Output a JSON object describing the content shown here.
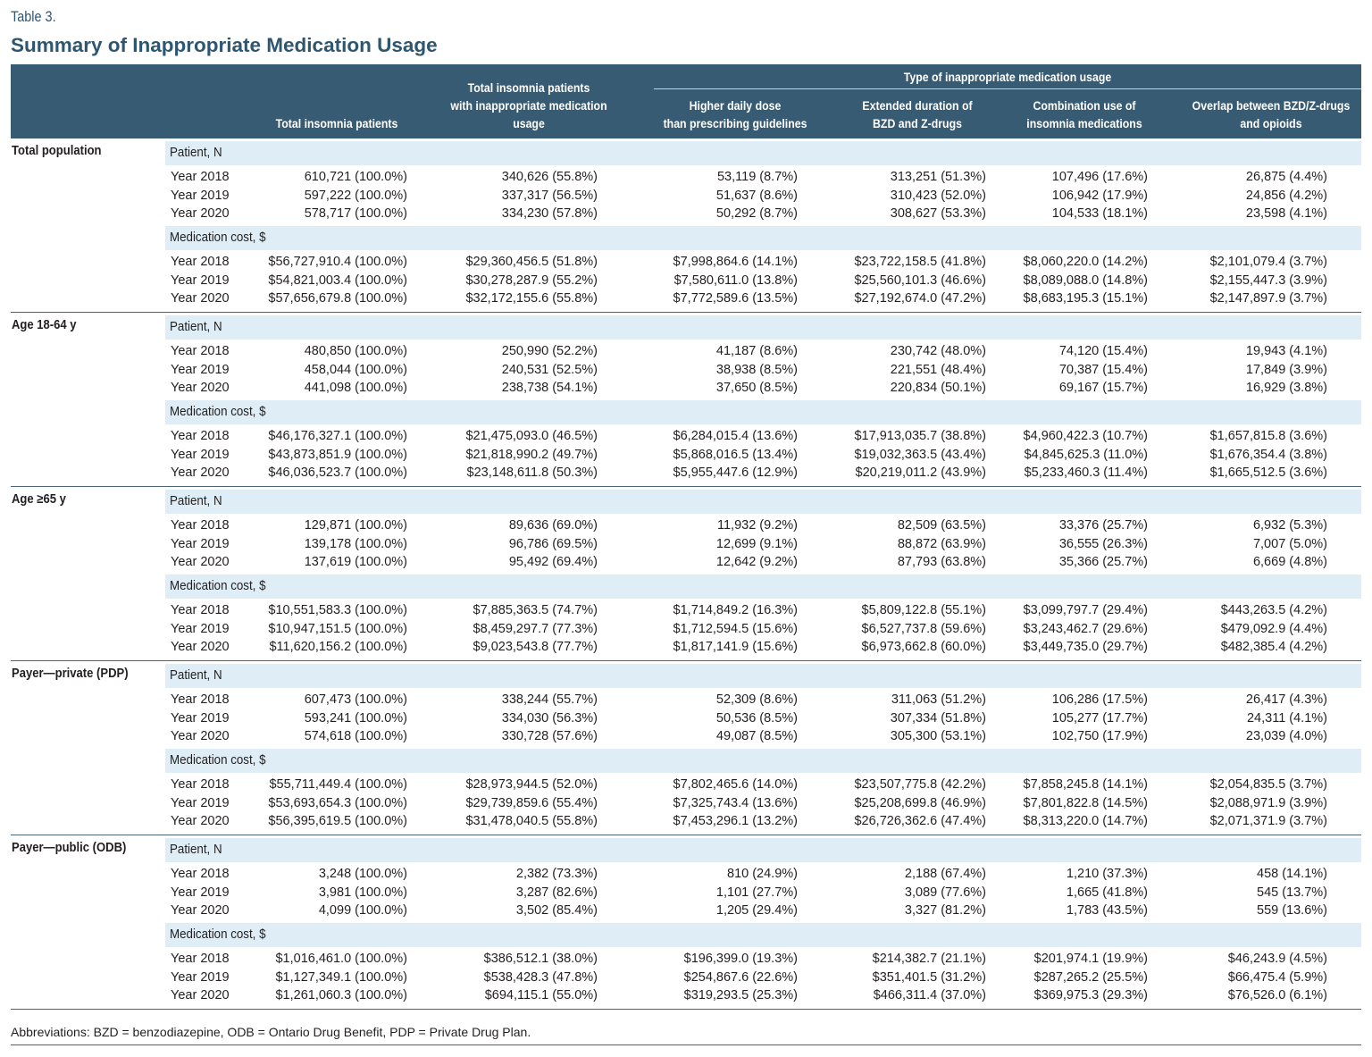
{
  "table_label": "Table 3.",
  "title": "Summary of Inappropriate Medication Usage",
  "header": {
    "col_total": "Total insomnia patients",
    "col_inappropriate": [
      "Total insomnia patients",
      "with inappropriate medication",
      "usage"
    ],
    "group": "Type of inappropriate medication usage",
    "types": [
      [
        "Higher daily dose",
        "than prescribing guidelines"
      ],
      [
        "Extended duration of",
        "BZD and Z-drugs"
      ],
      [
        "Combination use of",
        "insomnia medications"
      ],
      [
        "Overlap between BZD/Z-drugs",
        "and opioids"
      ]
    ]
  },
  "colors": {
    "header_bg": "#375b72",
    "title": "#2e5670",
    "band": "#deedf6"
  },
  "sections": [
    {
      "label": "Total population",
      "patient_label": "Patient, N",
      "cost_label": "Medication cost, $",
      "patients": [
        {
          "year": "Year 2018",
          "values": [
            "610,721 (100.0%)",
            "340,626 (55.8%)",
            "53,119 (8.7%)",
            "313,251 (51.3%)",
            "107,496 (17.6%)",
            "26,875 (4.4%)"
          ]
        },
        {
          "year": "Year 2019",
          "values": [
            "597,222 (100.0%)",
            "337,317 (56.5%)",
            "51,637 (8.6%)",
            "310,423 (52.0%)",
            "106,942 (17.9%)",
            "24,856 (4.2%)"
          ]
        },
        {
          "year": "Year 2020",
          "values": [
            "578,717 (100.0%)",
            "334,230 (57.8%)",
            "50,292 (8.7%)",
            "308,627 (53.3%)",
            "104,533 (18.1%)",
            "23,598 (4.1%)"
          ]
        }
      ],
      "costs": [
        {
          "year": "Year 2018",
          "values": [
            "$56,727,910.4 (100.0%)",
            "$29,360,456.5 (51.8%)",
            "$7,998,864.6 (14.1%)",
            "$23,722,158.5 (41.8%)",
            "$8,060,220.0 (14.2%)",
            "$2,101,079.4 (3.7%)"
          ]
        },
        {
          "year": "Year 2019",
          "values": [
            "$54,821,003.4 (100.0%)",
            "$30,278,287.9 (55.2%)",
            "$7,580,611.0 (13.8%)",
            "$25,560,101.3 (46.6%)",
            "$8,089,088.0 (14.8%)",
            "$2,155,447.3 (3.9%)"
          ]
        },
        {
          "year": "Year 2020",
          "values": [
            "$57,656,679.8 (100.0%)",
            "$32,172,155.6 (55.8%)",
            "$7,772,589.6 (13.5%)",
            "$27,192,674.0 (47.2%)",
            "$8,683,195.3 (15.1%)",
            "$2,147,897.9 (3.7%)"
          ]
        }
      ]
    },
    {
      "label": "Age 18-64 y",
      "patient_label": "Patient, N",
      "cost_label": "Medication cost, $",
      "patients": [
        {
          "year": "Year 2018",
          "values": [
            "480,850 (100.0%)",
            "250,990 (52.2%)",
            "41,187 (8.6%)",
            "230,742 (48.0%)",
            "74,120 (15.4%)",
            "19,943 (4.1%)"
          ]
        },
        {
          "year": "Year 2019",
          "values": [
            "458,044 (100.0%)",
            "240,531 (52.5%)",
            "38,938 (8.5%)",
            "221,551 (48.4%)",
            "70,387 (15.4%)",
            "17,849 (3.9%)"
          ]
        },
        {
          "year": "Year 2020",
          "values": [
            "441,098 (100.0%)",
            "238,738 (54.1%)",
            "37,650 (8.5%)",
            "220,834 (50.1%)",
            "69,167 (15.7%)",
            "16,929 (3.8%)"
          ]
        }
      ],
      "costs": [
        {
          "year": "Year 2018",
          "values": [
            "$46,176,327.1 (100.0%)",
            "$21,475,093.0 (46.5%)",
            "$6,284,015.4 (13.6%)",
            "$17,913,035.7 (38.8%)",
            "$4,960,422.3 (10.7%)",
            "$1,657,815.8 (3.6%)"
          ]
        },
        {
          "year": "Year 2019",
          "values": [
            "$43,873,851.9 (100.0%)",
            "$21,818,990.2 (49.7%)",
            "$5,868,016.5 (13.4%)",
            "$19,032,363.5 (43.4%)",
            "$4,845,625.3 (11.0%)",
            "$1,676,354.4 (3.8%)"
          ]
        },
        {
          "year": "Year 2020",
          "values": [
            "$46,036,523.7 (100.0%)",
            "$23,148,611.8 (50.3%)",
            "$5,955,447.6 (12.9%)",
            "$20,219,011.2 (43.9%)",
            "$5,233,460.3 (11.4%)",
            "$1,665,512.5 (3.6%)"
          ]
        }
      ]
    },
    {
      "label": "Age ≥65 y",
      "patient_label": "Patient, N",
      "cost_label": "Medication cost, $",
      "patients": [
        {
          "year": "Year 2018",
          "values": [
            "129,871 (100.0%)",
            "89,636 (69.0%)",
            "11,932 (9.2%)",
            "82,509 (63.5%)",
            "33,376 (25.7%)",
            "6,932 (5.3%)"
          ]
        },
        {
          "year": "Year 2019",
          "values": [
            "139,178 (100.0%)",
            "96,786 (69.5%)",
            "12,699 (9.1%)",
            "88,872 (63.9%)",
            "36,555 (26.3%)",
            "7,007 (5.0%)"
          ]
        },
        {
          "year": "Year 2020",
          "values": [
            "137,619 (100.0%)",
            "95,492 (69.4%)",
            "12,642 (9.2%)",
            "87,793 (63.8%)",
            "35,366 (25.7%)",
            "6,669 (4.8%)"
          ]
        }
      ],
      "costs": [
        {
          "year": "Year 2018",
          "values": [
            "$10,551,583.3 (100.0%)",
            "$7,885,363.5 (74.7%)",
            "$1,714,849.2 (16.3%)",
            "$5,809,122.8 (55.1%)",
            "$3,099,797.7 (29.4%)",
            "$443,263.5 (4.2%)"
          ]
        },
        {
          "year": "Year 2019",
          "values": [
            "$10,947,151.5 (100.0%)",
            "$8,459,297.7 (77.3%)",
            "$1,712,594.5 (15.6%)",
            "$6,527,737.8 (59.6%)",
            "$3,243,462.7 (29.6%)",
            "$479,092.9 (4.4%)"
          ]
        },
        {
          "year": "Year 2020",
          "values": [
            "$11,620,156.2 (100.0%)",
            "$9,023,543.8 (77.7%)",
            "$1,817,141.9 (15.6%)",
            "$6,973,662.8 (60.0%)",
            "$3,449,735.0 (29.7%)",
            "$482,385.4 (4.2%)"
          ]
        }
      ]
    },
    {
      "label": "Payer—private (PDP)",
      "patient_label": "Patient, N",
      "cost_label": "Medication cost, $",
      "patients": [
        {
          "year": "Year 2018",
          "values": [
            "607,473 (100.0%)",
            "338,244 (55.7%)",
            "52,309 (8.6%)",
            "311,063 (51.2%)",
            "106,286 (17.5%)",
            "26,417 (4.3%)"
          ]
        },
        {
          "year": "Year 2019",
          "values": [
            "593,241 (100.0%)",
            "334,030 (56.3%)",
            "50,536 (8.5%)",
            "307,334 (51.8%)",
            "105,277 (17.7%)",
            "24,311 (4.1%)"
          ]
        },
        {
          "year": "Year 2020",
          "values": [
            "574,618 (100.0%)",
            "330,728 (57.6%)",
            "49,087 (8.5%)",
            "305,300 (53.1%)",
            "102,750 (17.9%)",
            "23,039 (4.0%)"
          ]
        }
      ],
      "costs": [
        {
          "year": "Year 2018",
          "values": [
            "$55,711,449.4 (100.0%)",
            "$28,973,944.5 (52.0%)",
            "$7,802,465.6 (14.0%)",
            "$23,507,775.8 (42.2%)",
            "$7,858,245.8 (14.1%)",
            "$2,054,835.5 (3.7%)"
          ]
        },
        {
          "year": "Year 2019",
          "values": [
            "$53,693,654.3 (100.0%)",
            "$29,739,859.6 (55.4%)",
            "$7,325,743.4 (13.6%)",
            "$25,208,699.8 (46.9%)",
            "$7,801,822.8 (14.5%)",
            "$2,088,971.9 (3.9%)"
          ]
        },
        {
          "year": "Year 2020",
          "values": [
            "$56,395,619.5 (100.0%)",
            "$31,478,040.5 (55.8%)",
            "$7,453,296.1 (13.2%)",
            "$26,726,362.6 (47.4%)",
            "$8,313,220.0 (14.7%)",
            "$2,071,371.9 (3.7%)"
          ]
        }
      ]
    },
    {
      "label": "Payer—public (ODB)",
      "patient_label": "Patient, N",
      "cost_label": "Medication cost, $",
      "patients": [
        {
          "year": "Year 2018",
          "values": [
            "3,248 (100.0%)",
            "2,382 (73.3%)",
            "810 (24.9%)",
            "2,188 (67.4%)",
            "1,210 (37.3%)",
            "458 (14.1%)"
          ]
        },
        {
          "year": "Year 2019",
          "values": [
            "3,981 (100.0%)",
            "3,287 (82.6%)",
            "1,101 (27.7%)",
            "3,089 (77.6%)",
            "1,665 (41.8%)",
            "545 (13.7%)"
          ]
        },
        {
          "year": "Year 2020",
          "values": [
            "4,099 (100.0%)",
            "3,502 (85.4%)",
            "1,205 (29.4%)",
            "3,327 (81.2%)",
            "1,783 (43.5%)",
            "559 (13.6%)"
          ]
        }
      ],
      "costs": [
        {
          "year": "Year 2018",
          "values": [
            "$1,016,461.0 (100.0%)",
            "$386,512.1 (38.0%)",
            "$196,399.0 (19.3%)",
            "$214,382.7 (21.1%)",
            "$201,974.1 (19.9%)",
            "$46,243.9 (4.5%)"
          ]
        },
        {
          "year": "Year 2019",
          "values": [
            "$1,127,349.1 (100.0%)",
            "$538,428.3 (47.8%)",
            "$254,867.6 (22.6%)",
            "$351,401.5 (31.2%)",
            "$287,265.2 (25.5%)",
            "$66,475.4 (5.9%)"
          ]
        },
        {
          "year": "Year 2020",
          "values": [
            "$1,261,060.3 (100.0%)",
            "$694,115.1 (55.0%)",
            "$319,293.5 (25.3%)",
            "$466,311.4 (37.0%)",
            "$369,975.3 (29.3%)",
            "$76,526.0 (6.1%)"
          ]
        }
      ]
    }
  ],
  "footnote": "Abbreviations: BZD = benzodiazepine, ODB = Ontario Drug Benefit, PDP = Private Drug Plan."
}
